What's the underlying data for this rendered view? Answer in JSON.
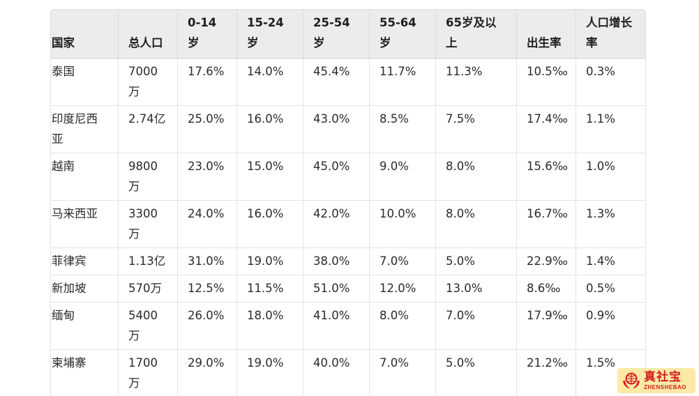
{
  "table": {
    "headers": [
      "国家",
      "总人口",
      "0-14岁",
      "15-24岁",
      "25-54岁",
      "55-64岁",
      "65岁及以上",
      "出生率",
      "人口增长率"
    ],
    "rows": [
      [
        "泰国",
        "7000万",
        "17.6%",
        "14.0%",
        "45.4%",
        "11.7%",
        "11.3%",
        "10.5‰",
        "0.3%"
      ],
      [
        "印度尼西亚",
        "2.74亿",
        "25.0%",
        "16.0%",
        "43.0%",
        "8.5%",
        "7.5%",
        "17.4‰",
        "1.1%"
      ],
      [
        "越南",
        "9800万",
        "23.0%",
        "15.0%",
        "45.0%",
        "9.0%",
        "8.0%",
        "15.6‰",
        "1.0%"
      ],
      [
        "马来西亚",
        "3300万",
        "24.0%",
        "16.0%",
        "42.0%",
        "10.0%",
        "8.0%",
        "16.7‰",
        "1.3%"
      ],
      [
        "菲律宾",
        "1.13亿",
        "31.0%",
        "19.0%",
        "38.0%",
        "7.0%",
        "5.0%",
        "22.9‰",
        "1.4%"
      ],
      [
        "新加坡",
        "570万",
        "12.5%",
        "11.5%",
        "51.0%",
        "12.0%",
        "13.0%",
        "8.6‰",
        "0.5%"
      ],
      [
        "缅甸",
        "5400万",
        "26.0%",
        "18.0%",
        "41.0%",
        "8.0%",
        "7.0%",
        "17.9‰",
        "0.9%"
      ],
      [
        "柬埔寨",
        "1700万",
        "29.0%",
        "19.0%",
        "40.0%",
        "7.0%",
        "5.0%",
        "21.2‰",
        "1.5%"
      ]
    ]
  },
  "watermark": {
    "name_cn": "真社宝",
    "name_en": "ZHENSHEBAO",
    "icon": "globe-hands-logo-icon",
    "color": "#d21f1f",
    "background": "#fde9a6"
  }
}
